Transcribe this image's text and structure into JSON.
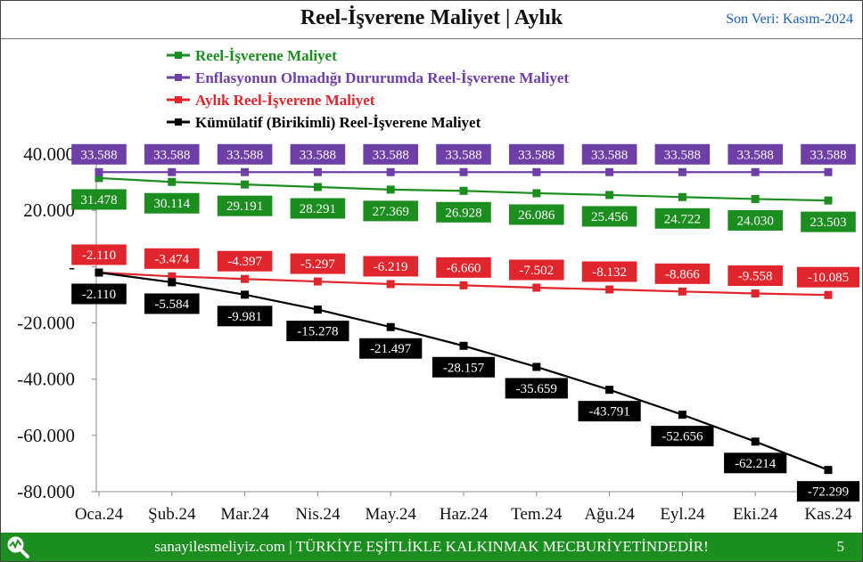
{
  "header": {
    "title": "Reel-İşverene Maliyet | Aylık",
    "last_update": "Son Veri: Kasım-2024"
  },
  "footer": {
    "text": "sanayilesmeliyiz.com | TÜRKİYE EŞİTLİKLE KALKINMAK MECBURİYETİNDEDİR!",
    "page_number": "5",
    "logo_icon": "magnifier-chart-icon"
  },
  "chart_data": {
    "type": "line",
    "categories": [
      "Oca.24",
      "Şub.24",
      "Mar.24",
      "Nis.24",
      "May.24",
      "Haz.24",
      "Tem.24",
      "Ağu.24",
      "Eyl.24",
      "Eki.24",
      "Kas.24"
    ],
    "ylim": [
      -80000,
      40000
    ],
    "yticks": [
      40000,
      20000,
      0,
      -20000,
      -40000,
      -60000,
      -80000
    ],
    "ytick_labels": [
      "40.000",
      "20.000",
      "-",
      "-20.000",
      "-40.000",
      "-60.000",
      "-80.000"
    ],
    "grid": false,
    "legend_position": "top",
    "series": [
      {
        "name": "Reel-İşverene Maliyet",
        "color": "#1b8e1f",
        "label_position": "below",
        "values": [
          31478,
          30114,
          29191,
          28291,
          27369,
          26928,
          26086,
          25456,
          24722,
          24030,
          23503
        ],
        "labels": [
          "31.478",
          "30.114",
          "29.191",
          "28.291",
          "27.369",
          "26.928",
          "26.086",
          "25.456",
          "24.722",
          "24.030",
          "23.503"
        ]
      },
      {
        "name": "Enflasyonun Olmadığı Dururumda Reel-İşverene Maliyet",
        "color": "#6f3fa8",
        "label_position": "above",
        "values": [
          33588,
          33588,
          33588,
          33588,
          33588,
          33588,
          33588,
          33588,
          33588,
          33588,
          33588
        ],
        "labels": [
          "33.588",
          "33.588",
          "33.588",
          "33.588",
          "33.588",
          "33.588",
          "33.588",
          "33.588",
          "33.588",
          "33.588",
          "33.588"
        ]
      },
      {
        "name": "Aylık Reel-İşverene Maliyet",
        "color": "#e0262c",
        "label_position": "above",
        "values": [
          -2110,
          -3474,
          -4397,
          -5297,
          -6219,
          -6660,
          -7502,
          -8132,
          -8866,
          -9558,
          -10085
        ],
        "labels": [
          "-2.110",
          "-3.474",
          "-4.397",
          "-5.297",
          "-6.219",
          "-6.660",
          "-7.502",
          "-8.132",
          "-8.866",
          "-9.558",
          "-10.085"
        ]
      },
      {
        "name": "Kümülatif (Birikimli) Reel-İşverene Maliyet",
        "color": "#000000",
        "label_position": "below",
        "values": [
          -2110,
          -5584,
          -9981,
          -15278,
          -21497,
          -28157,
          -35659,
          -43791,
          -52656,
          -62214,
          -72299
        ],
        "labels": [
          "-2.110",
          "-5.584",
          "-9.981",
          "-15.278",
          "-21.497",
          "-28.157",
          "-35.659",
          "-43.791",
          "-52.656",
          "-62.214",
          "-72.299"
        ]
      }
    ]
  }
}
